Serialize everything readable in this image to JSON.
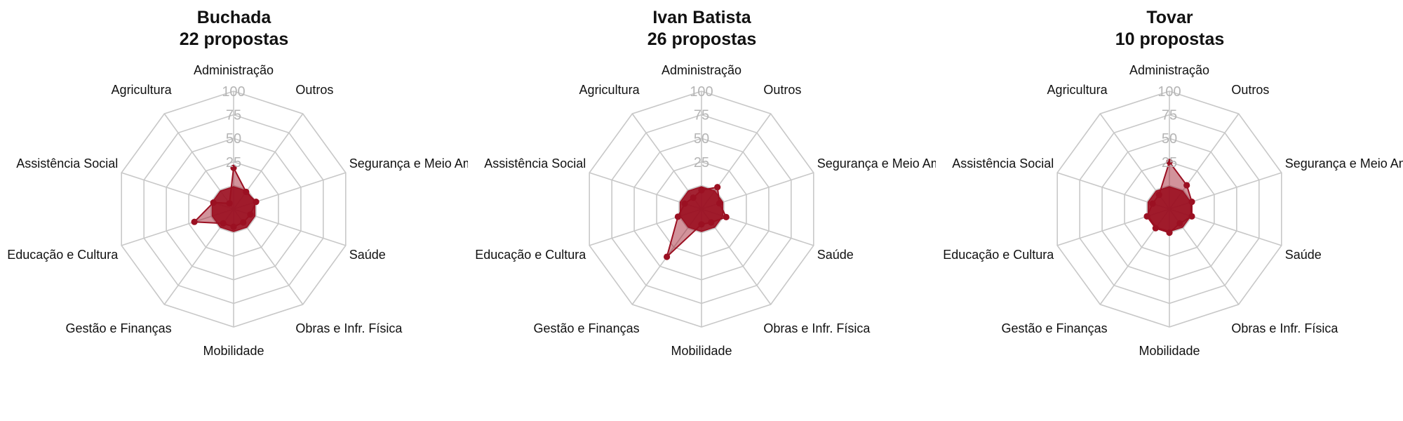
{
  "chart_data": [
    {
      "type": "radar",
      "title": "Buchada",
      "subtitle": "22 propostas",
      "axes": [
        "Administração",
        "Outros",
        "Segurança e Meio Amb.",
        "Saúde",
        "Obras e Infr. Física",
        "Mobilidade",
        "Gestão e Finanças",
        "Educação e Cultura",
        "Assistência Social",
        "Agricultura"
      ],
      "values": [
        35,
        18,
        20,
        15,
        14,
        15,
        15,
        35,
        18,
        6
      ],
      "rlim": [
        0,
        100
      ],
      "rticks": [
        "25",
        "50",
        "75",
        "100"
      ],
      "color": "#9b1022"
    },
    {
      "type": "radar",
      "title": "Ivan Batista",
      "subtitle": "26 propostas",
      "axes": [
        "Administração",
        "Outros",
        "Segurança e Meio Amb.",
        "Saúde",
        "Obras e Infr. Física",
        "Mobilidade",
        "Gestão e Finanças",
        "Educação e Cultura",
        "Assistência Social",
        "Agricultura"
      ],
      "values": [
        16,
        23,
        16,
        22,
        14,
        13,
        50,
        21,
        15,
        12
      ],
      "rlim": [
        0,
        100
      ],
      "rticks": [
        "25",
        "50",
        "75",
        "100"
      ],
      "color": "#9b1022"
    },
    {
      "type": "radar",
      "title": "Tovar",
      "subtitle": "10 propostas",
      "axes": [
        "Administração",
        "Outros",
        "Segurança e Meio Amb.",
        "Saúde",
        "Obras e Infr. Física",
        "Mobilidade",
        "Gestão e Finanças",
        "Educação e Cultura",
        "Assistência Social",
        "Agricultura"
      ],
      "values": [
        40,
        25,
        20,
        20,
        15,
        20,
        20,
        20,
        15,
        15
      ],
      "rlim": [
        0,
        100
      ],
      "rticks": [
        "25",
        "50",
        "75",
        "100"
      ],
      "color": "#9b1022"
    }
  ]
}
